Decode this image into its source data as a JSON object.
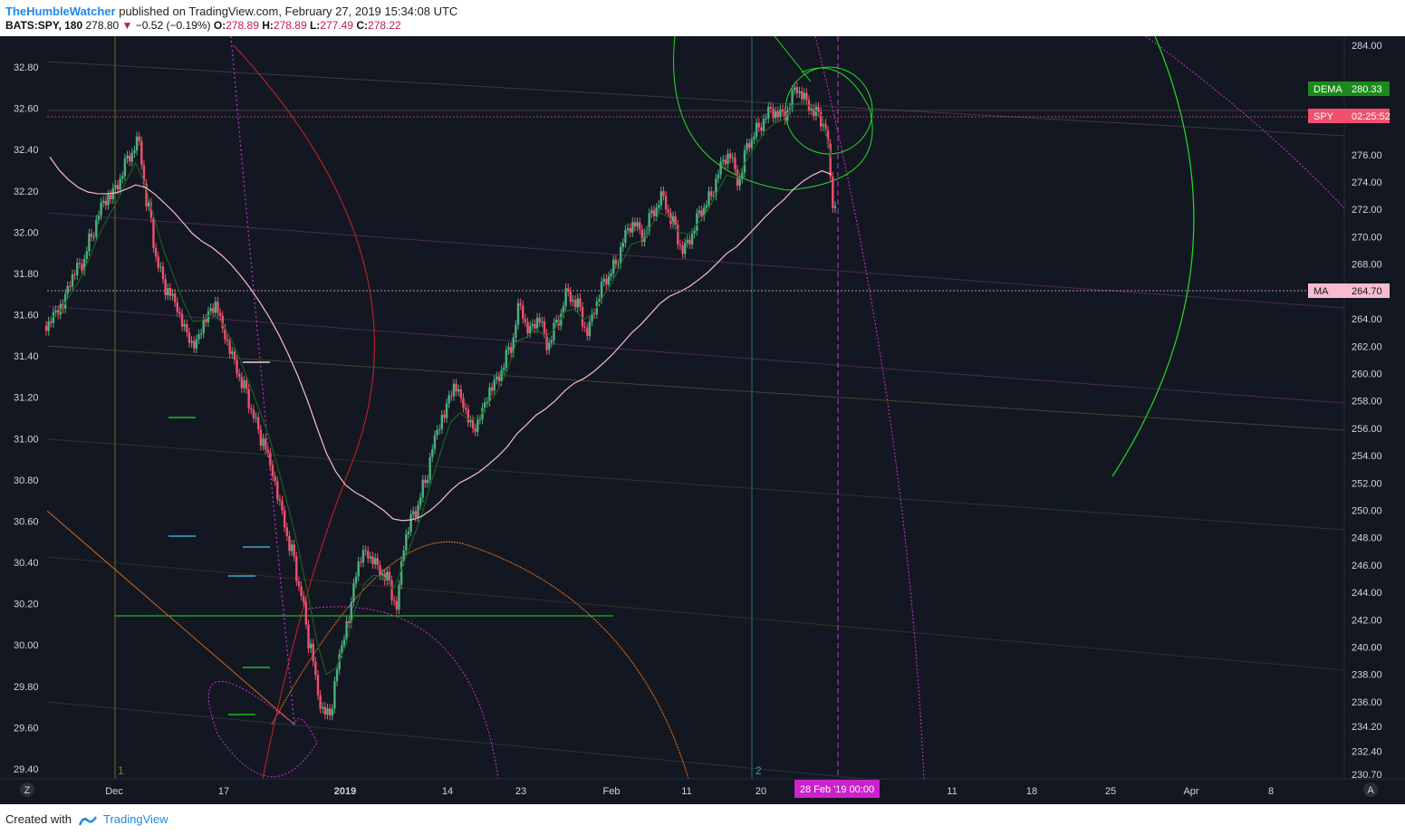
{
  "header": {
    "author": "TheHumbleWatcher",
    "published_text": "published on TradingView.com, February 27, 2019 15:34:08 UTC",
    "symbol": "BATS:SPY, 180",
    "last": "278.80",
    "change": "−0.52 (−0.19%)",
    "open_label": "O:",
    "open": "278.89",
    "high_label": "H:",
    "high": "278.89",
    "low_label": "L:",
    "low": "277.49",
    "close_label": "C:",
    "close": "278.22"
  },
  "footer": {
    "created_text": "Created with",
    "brand": "TradingView"
  },
  "colors": {
    "background": "#131722",
    "up_candle": "#4caf7d",
    "down_candle": "#f0506e",
    "ma_line": "#f8bbd0",
    "dema_line": "#1b5e20",
    "green_drawing": "#22dd22",
    "magenta_drawing": "#cc33cc",
    "orange_drawing": "#d2691e",
    "red_drawing": "#cc2222"
  },
  "chart_data": {
    "type": "candlestick",
    "symbol": "BATS:SPY",
    "interval": "180",
    "y_right_ticks": [
      "284.00",
      "276.00",
      "274.00",
      "272.00",
      "270.00",
      "268.00",
      "266.00",
      "264.00",
      "262.00",
      "260.00",
      "258.00",
      "256.00",
      "254.00",
      "252.00",
      "250.00",
      "248.00",
      "246.00",
      "244.00",
      "242.00",
      "240.00",
      "238.00",
      "236.00",
      "234.20",
      "232.40",
      "230.70"
    ],
    "y_left_ticks": [
      "32.80",
      "32.60",
      "32.40",
      "32.20",
      "32.00",
      "31.80",
      "31.60",
      "31.40",
      "31.20",
      "31.00",
      "30.80",
      "30.60",
      "30.40",
      "30.20",
      "30.00",
      "29.80",
      "29.60",
      "29.40"
    ],
    "x_ticks": [
      "Dec",
      "17",
      "2019",
      "14",
      "23",
      "Feb",
      "11",
      "20",
      "11",
      "18",
      "25",
      "Apr",
      "8"
    ],
    "price_range": [
      230.7,
      284.0
    ],
    "closes": [
      264,
      265,
      267,
      268,
      270,
      272,
      273,
      274,
      276,
      277,
      272,
      268,
      266,
      265,
      263,
      262,
      264,
      265,
      263,
      261,
      259,
      257,
      255,
      253,
      250,
      247,
      244,
      240,
      236,
      235,
      239,
      242,
      246,
      247,
      246,
      245,
      243,
      248,
      250,
      252,
      255,
      257,
      259,
      258,
      256,
      257,
      259,
      260,
      262,
      265,
      263,
      264,
      262,
      264,
      266,
      265,
      263,
      265,
      267,
      268,
      270,
      271,
      270,
      272,
      273,
      271,
      269,
      270,
      272,
      273,
      275,
      276,
      274,
      277,
      278,
      279,
      279,
      279,
      281,
      280,
      279,
      278,
      272
    ],
    "labels": {
      "dema": {
        "name": "DEMA",
        "value": "280.33"
      },
      "spy": {
        "name": "SPY",
        "value": "02:25:52"
      },
      "ma": {
        "name": "MA",
        "value": "264.70"
      },
      "date_marker": "28 Feb '19  00:00"
    },
    "annotations": [
      "1",
      "2"
    ],
    "corner_buttons": [
      "Z",
      "A"
    ]
  }
}
